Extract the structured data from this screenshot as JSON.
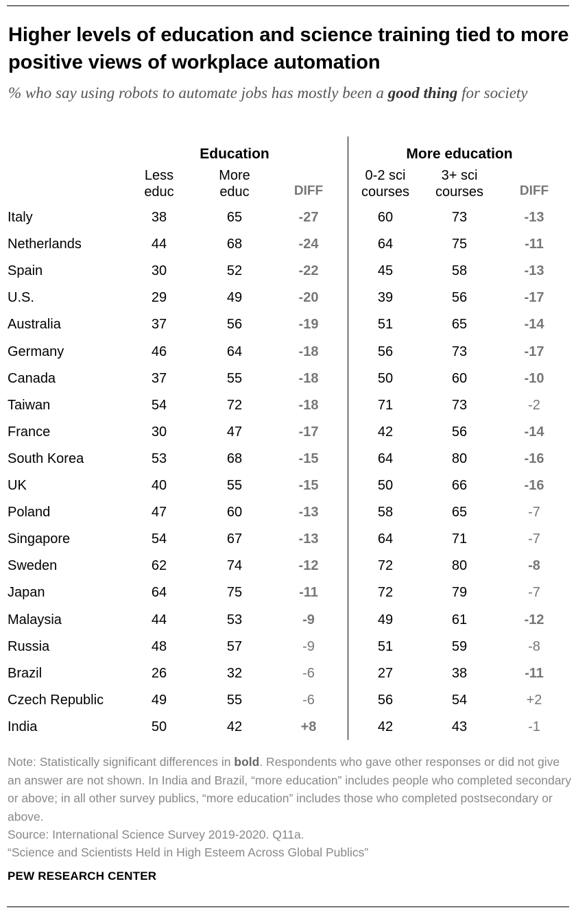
{
  "title": "Higher levels of education and science training tied to more positive views of workplace automation",
  "subtitle": {
    "prefix": "% who say using robots to automate jobs has mostly been a ",
    "emphasis": "good thing",
    "suffix": " for society"
  },
  "columns": {
    "group1": "Education",
    "group2": "More education",
    "less_educ_l1": "Less",
    "less_educ_l2": "educ",
    "more_educ_l1": "More",
    "more_educ_l2": "educ",
    "diff": "DIFF",
    "sci02_l1": "0-2 sci",
    "sci02_l2": "courses",
    "sci3_l1": "3+ sci",
    "sci3_l2": "courses",
    "diff2": "DIFF"
  },
  "chart_data": {
    "type": "table",
    "columns": [
      "Less educ",
      "More educ",
      "DIFF",
      "0-2 sci courses",
      "3+ sci courses",
      "DIFF"
    ],
    "rows": [
      {
        "country": "Italy",
        "less": "38",
        "more": "65",
        "diff": "-27",
        "diff_sig": true,
        "sci02": "60",
        "sci3": "73",
        "diff2": "-13",
        "diff2_sig": true
      },
      {
        "country": "Netherlands",
        "less": "44",
        "more": "68",
        "diff": "-24",
        "diff_sig": true,
        "sci02": "64",
        "sci3": "75",
        "diff2": "-11",
        "diff2_sig": true
      },
      {
        "country": "Spain",
        "less": "30",
        "more": "52",
        "diff": "-22",
        "diff_sig": true,
        "sci02": "45",
        "sci3": "58",
        "diff2": "-13",
        "diff2_sig": true
      },
      {
        "country": "U.S.",
        "less": "29",
        "more": "49",
        "diff": "-20",
        "diff_sig": true,
        "sci02": "39",
        "sci3": "56",
        "diff2": "-17",
        "diff2_sig": true
      },
      {
        "country": "Australia",
        "less": "37",
        "more": "56",
        "diff": "-19",
        "diff_sig": true,
        "sci02": "51",
        "sci3": "65",
        "diff2": "-14",
        "diff2_sig": true
      },
      {
        "country": "Germany",
        "less": "46",
        "more": "64",
        "diff": "-18",
        "diff_sig": true,
        "sci02": "56",
        "sci3": "73",
        "diff2": "-17",
        "diff2_sig": true
      },
      {
        "country": "Canada",
        "less": "37",
        "more": "55",
        "diff": "-18",
        "diff_sig": true,
        "sci02": "50",
        "sci3": "60",
        "diff2": "-10",
        "diff2_sig": true
      },
      {
        "country": "Taiwan",
        "less": "54",
        "more": "72",
        "diff": "-18",
        "diff_sig": true,
        "sci02": "71",
        "sci3": "73",
        "diff2": "-2",
        "diff2_sig": false
      },
      {
        "country": "France",
        "less": "30",
        "more": "47",
        "diff": "-17",
        "diff_sig": true,
        "sci02": "42",
        "sci3": "56",
        "diff2": "-14",
        "diff2_sig": true
      },
      {
        "country": "South Korea",
        "less": "53",
        "more": "68",
        "diff": "-15",
        "diff_sig": true,
        "sci02": "64",
        "sci3": "80",
        "diff2": "-16",
        "diff2_sig": true
      },
      {
        "country": "UK",
        "less": "40",
        "more": "55",
        "diff": "-15",
        "diff_sig": true,
        "sci02": "50",
        "sci3": "66",
        "diff2": "-16",
        "diff2_sig": true
      },
      {
        "country": "Poland",
        "less": "47",
        "more": "60",
        "diff": "-13",
        "diff_sig": true,
        "sci02": "58",
        "sci3": "65",
        "diff2": "-7",
        "diff2_sig": false
      },
      {
        "country": "Singapore",
        "less": "54",
        "more": "67",
        "diff": "-13",
        "diff_sig": true,
        "sci02": "64",
        "sci3": "71",
        "diff2": "-7",
        "diff2_sig": false
      },
      {
        "country": "Sweden",
        "less": "62",
        "more": "74",
        "diff": "-12",
        "diff_sig": true,
        "sci02": "72",
        "sci3": "80",
        "diff2": "-8",
        "diff2_sig": true
      },
      {
        "country": "Japan",
        "less": "64",
        "more": "75",
        "diff": "-11",
        "diff_sig": true,
        "sci02": "72",
        "sci3": "79",
        "diff2": "-7",
        "diff2_sig": false
      },
      {
        "country": "Malaysia",
        "less": "44",
        "more": "53",
        "diff": "-9",
        "diff_sig": true,
        "sci02": "49",
        "sci3": "61",
        "diff2": "-12",
        "diff2_sig": true
      },
      {
        "country": "Russia",
        "less": "48",
        "more": "57",
        "diff": "-9",
        "diff_sig": false,
        "sci02": "51",
        "sci3": "59",
        "diff2": "-8",
        "diff2_sig": false
      },
      {
        "country": "Brazil",
        "less": "26",
        "more": "32",
        "diff": "-6",
        "diff_sig": false,
        "sci02": "27",
        "sci3": "38",
        "diff2": "-11",
        "diff2_sig": true
      },
      {
        "country": "Czech Republic",
        "less": "49",
        "more": "55",
        "diff": "-6",
        "diff_sig": false,
        "sci02": "56",
        "sci3": "54",
        "diff2": "+2",
        "diff2_sig": false
      },
      {
        "country": "India",
        "less": "50",
        "more": "42",
        "diff": "+8",
        "diff_sig": true,
        "sci02": "42",
        "sci3": "43",
        "diff2": "-1",
        "diff2_sig": false
      }
    ]
  },
  "note": {
    "prefix": "Note: Statistically significant differences in ",
    "bold_word": "bold",
    "suffix": ". Respondents who gave other responses or did not give an answer are not shown. In India and Brazil, “more education” includes people who completed secondary or above; in all other survey publics, “more education” includes those who completed postsecondary or above."
  },
  "source": "Source: International Science Survey 2019-2020. Q11a.",
  "report": "“Science and Scientists Held in High Esteem Across Global Publics”",
  "brand": "PEW RESEARCH CENTER"
}
